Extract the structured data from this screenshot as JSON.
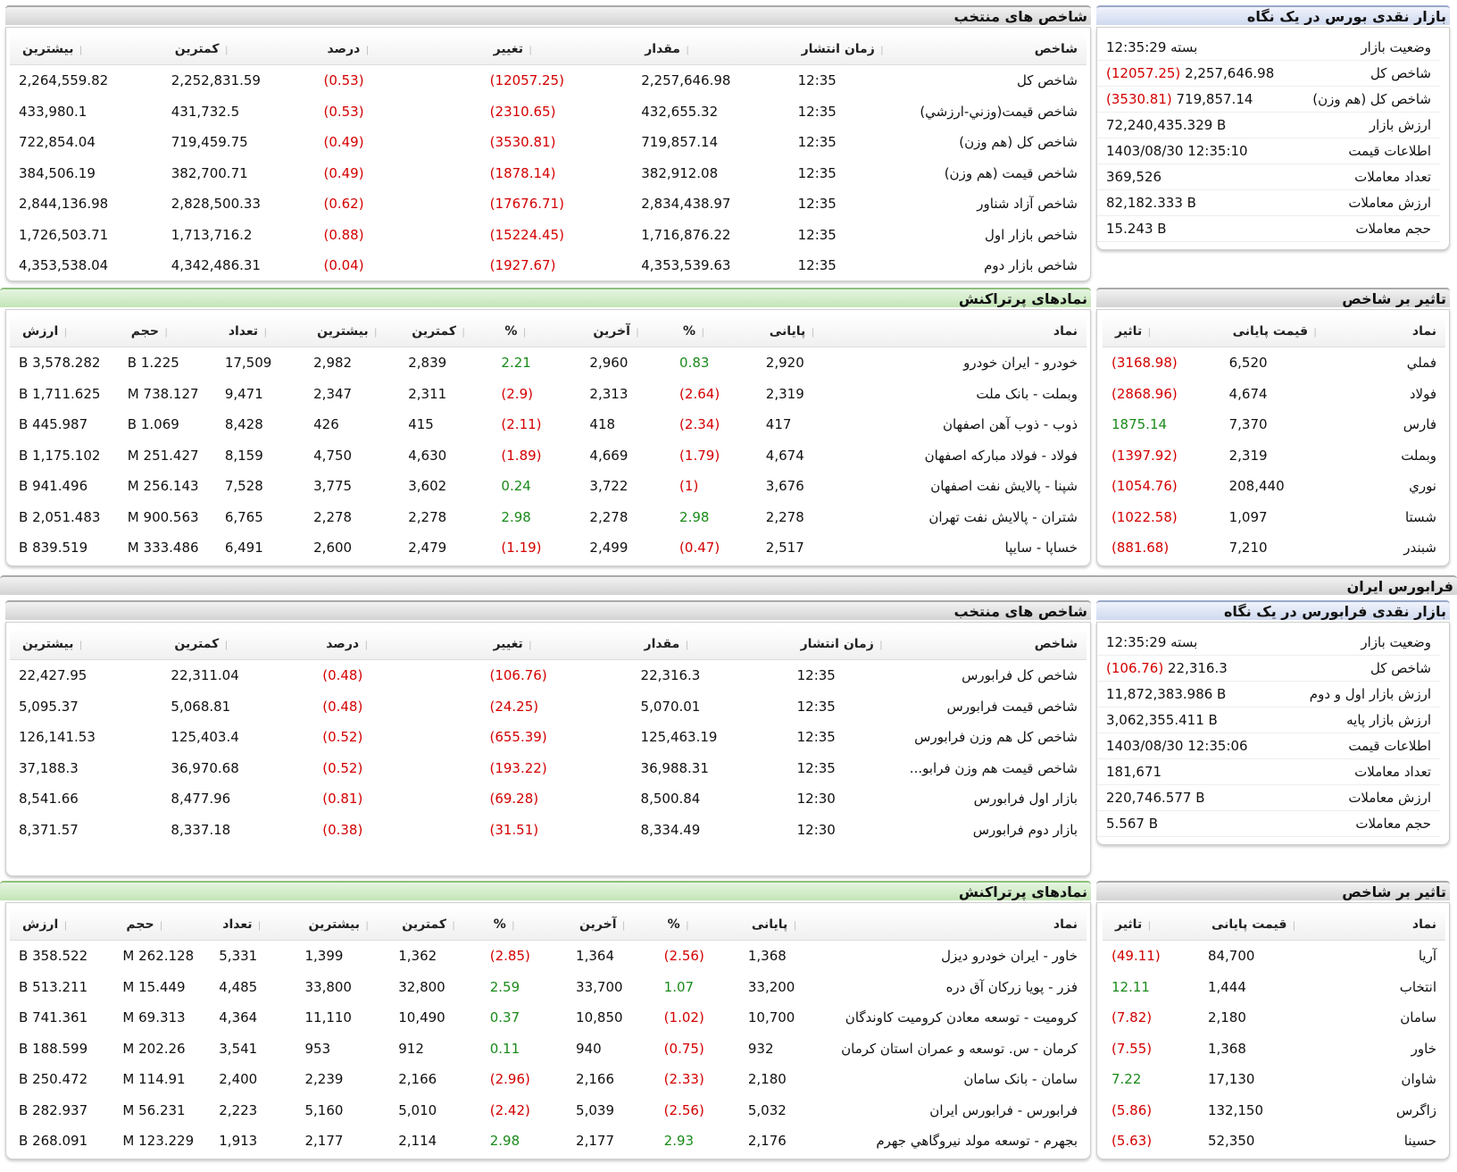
{
  "bourse": {
    "summary": {
      "title": "بازار نقدی بورس در یک نگاه",
      "rows": [
        {
          "label": "وضعیت بازار",
          "value": "بسته 12:35:29",
          "change": ""
        },
        {
          "label": "شاخص کل",
          "value": "2,257,646.98",
          "change": "(12057.25)"
        },
        {
          "label": "شاخص کل (هم وزن)",
          "value": "719,857.14",
          "change": "(3530.81)"
        },
        {
          "label": "ارزش بازار",
          "value": "72,240,435.329 B",
          "change": ""
        },
        {
          "label": "اطلاعات قیمت",
          "value": "1403/08/30 12:35:10",
          "change": ""
        },
        {
          "label": "تعداد معاملات",
          "value": "369,526",
          "change": ""
        },
        {
          "label": "ارزش معاملات",
          "value": "82,182.333 B",
          "change": ""
        },
        {
          "label": "حجم معاملات",
          "value": "15.243 B",
          "change": ""
        }
      ]
    },
    "indices": {
      "title": "شاخص های منتخب",
      "headers": [
        "شاخص",
        "زمان انتشار",
        "مقدار",
        "تغییر",
        "درصد",
        "کمترین",
        "بیشترین"
      ],
      "rows": [
        [
          "شاخص کل",
          "12:35",
          "2,257,646.98",
          "(12057.25)",
          "(0.53)",
          "2,252,831.59",
          "2,264,559.82"
        ],
        [
          "شاخص قیمت(وزني-ارزشي)",
          "12:35",
          "432,655.32",
          "(2310.65)",
          "(0.53)",
          "431,732.5",
          "433,980.1"
        ],
        [
          "شاخص کل (هم وزن)",
          "12:35",
          "719,857.14",
          "(3530.81)",
          "(0.49)",
          "719,459.75",
          "722,854.04"
        ],
        [
          "شاخص قیمت (هم وزن)",
          "12:35",
          "382,912.08",
          "(1878.14)",
          "(0.49)",
          "382,700.71",
          "384,506.19"
        ],
        [
          "شاخص آزاد شناور",
          "12:35",
          "2,834,438.97",
          "(17676.71)",
          "(0.62)",
          "2,828,500.33",
          "2,844,136.98"
        ],
        [
          "شاخص بازار اول",
          "12:35",
          "1,716,876.22",
          "(15224.45)",
          "(0.88)",
          "1,713,716.2",
          "1,726,503.71"
        ],
        [
          "شاخص بازار دوم",
          "12:35",
          "4,353,539.63",
          "(1927.67)",
          "(0.04)",
          "4,342,486.31",
          "4,353,538.04"
        ]
      ]
    },
    "impact": {
      "title": "تاثیر بر شاخص",
      "headers": [
        "نماد",
        "قیمت پایانی",
        "تاثیر"
      ],
      "rows": [
        [
          "فملي",
          "6,520",
          "(3168.98)"
        ],
        [
          "فولاد",
          "4,674",
          "(2868.96)"
        ],
        [
          "فارس",
          "7,370",
          "1875.14"
        ],
        [
          "وبملت",
          "2,319",
          "(1397.92)"
        ],
        [
          "نوري",
          "208,440",
          "(1054.76)"
        ],
        [
          "شستا",
          "1,097",
          "(1022.58)"
        ],
        [
          "شبندر",
          "7,210",
          "(881.68)"
        ]
      ]
    },
    "active": {
      "title": "نمادهای پرتراکنش",
      "headers": [
        "نماد",
        "پایانی",
        "%",
        "آخرین",
        "%",
        "کمترین",
        "بیشترین",
        "تعداد",
        "حجم",
        "ارزش"
      ],
      "rows": [
        [
          "خودرو - ایران خودرو",
          "2,920",
          "0.83",
          "2,960",
          "2.21",
          "2,839",
          "2,982",
          "17,509",
          "1.225 B",
          "3,578.282 B"
        ],
        [
          "وبملت - بانک ملت",
          "2,319",
          "(2.64)",
          "2,313",
          "(2.9)",
          "2,311",
          "2,347",
          "9,471",
          "738.127 M",
          "1,711.625 B"
        ],
        [
          "ذوب - ذوب آهن اصفهان",
          "417",
          "(2.34)",
          "418",
          "(2.11)",
          "415",
          "426",
          "8,428",
          "1.069 B",
          "445.987 B"
        ],
        [
          "فولاد - فولاد مبارکه اصفهان",
          "4,674",
          "(1.79)",
          "4,669",
          "(1.89)",
          "4,630",
          "4,750",
          "8,159",
          "251.427 M",
          "1,175.102 B"
        ],
        [
          "شپنا - پالایش نفت اصفهان",
          "3,676",
          "(1)",
          "3,722",
          "0.24",
          "3,602",
          "3,775",
          "7,528",
          "256.143 M",
          "941.496 B"
        ],
        [
          "شتران - پالایش نفت تهران",
          "2,278",
          "2.98",
          "2,278",
          "2.98",
          "2,278",
          "2,278",
          "6,765",
          "900.563 M",
          "2,051.483 B"
        ],
        [
          "خساپا - سایپا",
          "2,517",
          "(0.47)",
          "2,499",
          "(1.19)",
          "2,479",
          "2,600",
          "6,491",
          "333.486 M",
          "839.519 B"
        ]
      ]
    }
  },
  "farabourse_title": "فرابورس ایران",
  "fara": {
    "summary": {
      "title": "بازار نقدی فرابورس در یک نگاه",
      "rows": [
        {
          "label": "وضعیت بازار",
          "value": "بسته 12:35:29",
          "change": ""
        },
        {
          "label": "شاخص کل",
          "value": "22,316.3",
          "change": "(106.76)"
        },
        {
          "label": "ارزش بازار اول و دوم",
          "value": "11,872,383.986 B",
          "change": ""
        },
        {
          "label": "ارزش بازار پایه",
          "value": "3,062,355.411 B",
          "change": ""
        },
        {
          "label": "اطلاعات قیمت",
          "value": "1403/08/30 12:35:06",
          "change": ""
        },
        {
          "label": "تعداد معاملات",
          "value": "181,671",
          "change": ""
        },
        {
          "label": "ارزش معاملات",
          "value": "220,746.577 B",
          "change": ""
        },
        {
          "label": "حجم معاملات",
          "value": "5.567 B",
          "change": ""
        }
      ]
    },
    "indices": {
      "title": "شاخص های منتخب",
      "headers": [
        "شاخص",
        "زمان انتشار",
        "مقدار",
        "تغییر",
        "درصد",
        "کمترین",
        "بیشترین"
      ],
      "rows": [
        [
          "شاخص کل فرابورس",
          "12:35",
          "22,316.3",
          "(106.76)",
          "(0.48)",
          "22,311.04",
          "22,427.95"
        ],
        [
          "شاخص قیمت فرابورس",
          "12:35",
          "5,070.01",
          "(24.25)",
          "(0.48)",
          "5,068.81",
          "5,095.37"
        ],
        [
          "شاخص کل هم وزن فرابورس",
          "12:35",
          "125,463.19",
          "(655.39)",
          "(0.52)",
          "125,403.4",
          "126,141.53"
        ],
        [
          "شاخص قیمت هم وزن فرابو...",
          "12:35",
          "36,988.31",
          "(193.22)",
          "(0.52)",
          "36,970.68",
          "37,188.3"
        ],
        [
          "بازار اول فرابورس",
          "12:30",
          "8,500.84",
          "(69.28)",
          "(0.81)",
          "8,477.96",
          "8,541.66"
        ],
        [
          "بازار دوم فرابورس",
          "12:30",
          "8,334.49",
          "(31.51)",
          "(0.38)",
          "8,337.18",
          "8,371.57"
        ]
      ]
    },
    "impact": {
      "title": "تاثیر بر شاخص",
      "headers": [
        "نماد",
        "قیمت پایانی",
        "تاثیر"
      ],
      "rows": [
        [
          "آريا",
          "84,700",
          "(49.11)"
        ],
        [
          "انتخاب",
          "1,444",
          "12.11"
        ],
        [
          "سامان",
          "2,180",
          "(7.82)"
        ],
        [
          "خاور",
          "1,368",
          "(7.55)"
        ],
        [
          "شاوان",
          "17,130",
          "7.22"
        ],
        [
          "زاگرس",
          "132,150",
          "(5.86)"
        ],
        [
          "حسينا",
          "52,350",
          "(5.63)"
        ]
      ]
    },
    "active": {
      "title": "نمادهای پرتراکنش",
      "headers": [
        "نماد",
        "پایانی",
        "%",
        "آخرین",
        "%",
        "کمترین",
        "بیشترین",
        "تعداد",
        "حجم",
        "ارزش"
      ],
      "rows": [
        [
          "خاور - ایران خودرو دیزل",
          "1,368",
          "(2.56)",
          "1,364",
          "(2.85)",
          "1,362",
          "1,399",
          "5,331",
          "262.128 M",
          "358.522 B"
        ],
        [
          "فزر - پویا زرکان آق دره",
          "33,200",
          "1.07",
          "33,700",
          "2.59",
          "32,800",
          "33,800",
          "4,485",
          "15.449 M",
          "513.211 B"
        ],
        [
          "کرومیت - توسعه معادن کرومیت کاوندگان",
          "10,700",
          "(1.02)",
          "10,850",
          "0.37",
          "10,490",
          "11,110",
          "4,364",
          "69.313 M",
          "741.361 B"
        ],
        [
          "کرمان - س. توسعه و عمران استان کرمان",
          "932",
          "(0.75)",
          "940",
          "0.11",
          "912",
          "953",
          "3,541",
          "202.26 M",
          "188.599 B"
        ],
        [
          "سامان - بانک سامان",
          "2,180",
          "(2.33)",
          "2,166",
          "(2.96)",
          "2,166",
          "2,239",
          "2,400",
          "114.91 M",
          "250.472 B"
        ],
        [
          "فرابورس - فرابورس ایران",
          "5,032",
          "(2.56)",
          "5,039",
          "(2.42)",
          "5,010",
          "5,160",
          "2,223",
          "56.231 M",
          "282.937 B"
        ],
        [
          "بجهرم - توسعه مولد نیروگاهي جهرم",
          "2,176",
          "2.93",
          "2,177",
          "2.98",
          "2,114",
          "2,177",
          "1,913",
          "123.229 M",
          "268.091 B"
        ]
      ]
    }
  },
  "colors": {
    "negative": "#d40000",
    "positive": "#1a8a1a"
  }
}
